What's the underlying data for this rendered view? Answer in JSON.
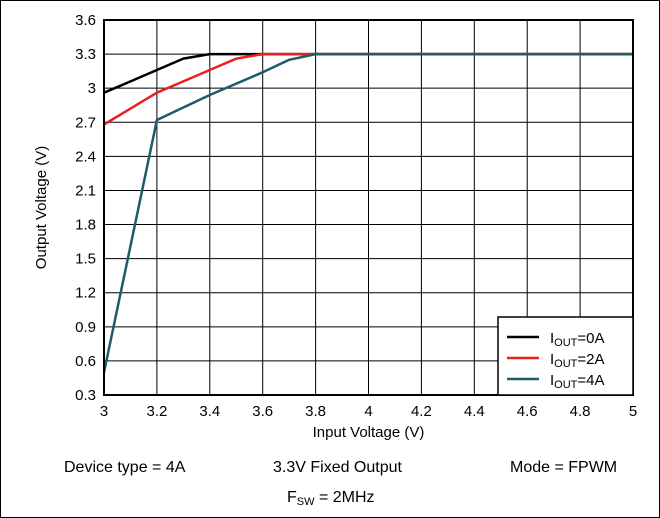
{
  "chart_data": {
    "type": "line",
    "xlabel": "Input Voltage (V)",
    "ylabel": "Output Voltage (V)",
    "xlim": [
      3,
      5
    ],
    "ylim": [
      0.3,
      3.6
    ],
    "xticks": [
      "3",
      "3.2",
      "3.4",
      "3.6",
      "3.8",
      "4",
      "4.2",
      "4.4",
      "4.6",
      "4.8",
      "5"
    ],
    "yticks": [
      "0.3",
      "0.6",
      "0.9",
      "1.2",
      "1.5",
      "1.8",
      "2.1",
      "2.4",
      "2.7",
      "3",
      "3.3",
      "3.6"
    ],
    "xtick_values": [
      3,
      3.2,
      3.4,
      3.6,
      3.8,
      4,
      4.2,
      4.4,
      4.6,
      4.8,
      5
    ],
    "ytick_values": [
      0.3,
      0.6,
      0.9,
      1.2,
      1.5,
      1.8,
      2.1,
      2.4,
      2.7,
      3.0,
      3.3,
      3.6
    ],
    "grid": true,
    "legend_position": "bottom-right",
    "series": [
      {
        "name": "I",
        "name_sub": "OUT",
        "name_suffix": "=0A",
        "color": "#000000",
        "x": [
          3.0,
          3.1,
          3.2,
          3.3,
          3.4,
          3.5,
          3.6,
          3.8,
          4.0,
          5.0
        ],
        "y": [
          2.96,
          3.06,
          3.16,
          3.26,
          3.3,
          3.3,
          3.3,
          3.3,
          3.3,
          3.3
        ]
      },
      {
        "name": "I",
        "name_sub": "OUT",
        "name_suffix": "=2A",
        "color": "#e8201f",
        "x": [
          3.0,
          3.1,
          3.2,
          3.3,
          3.4,
          3.5,
          3.6,
          3.8,
          4.0,
          5.0
        ],
        "y": [
          2.68,
          2.82,
          2.96,
          3.06,
          3.16,
          3.26,
          3.3,
          3.3,
          3.3,
          3.3
        ]
      },
      {
        "name": "I",
        "name_sub": "OUT",
        "name_suffix": "=4A",
        "color": "#1e5b6b",
        "x": [
          3.0,
          3.2,
          3.3,
          3.4,
          3.5,
          3.6,
          3.7,
          3.8,
          4.0,
          5.0
        ],
        "y": [
          0.5,
          2.72,
          2.83,
          2.94,
          3.04,
          3.14,
          3.25,
          3.3,
          3.3,
          3.3
        ]
      }
    ]
  },
  "captions": {
    "device": "Device type = 4A",
    "output": "3.3V Fixed Output",
    "mode": "Mode = FPWM",
    "fsw_main": "F",
    "fsw_sub": "SW",
    "fsw_rest": " = 2MHz"
  }
}
